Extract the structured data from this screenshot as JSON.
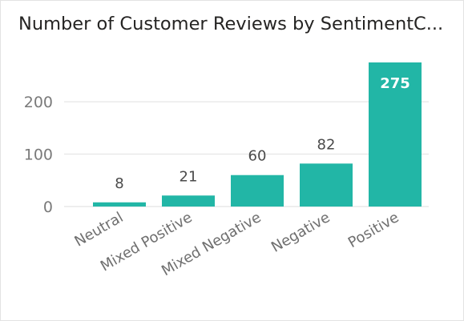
{
  "visual": {
    "title": "Number of Customer Reviews by SentimentC..."
  },
  "chart_data": {
    "type": "bar",
    "title": "Number of Customer Reviews by SentimentC...",
    "categories": [
      "Neutral",
      "Mixed Positive",
      "Mixed Negative",
      "Negative",
      "Positive"
    ],
    "values": [
      8,
      21,
      60,
      82,
      275
    ],
    "data_labels": [
      "8",
      "21",
      "60",
      "82",
      "275"
    ],
    "yticks": [
      0,
      100,
      200
    ],
    "ytick_labels": [
      "0",
      "100",
      "200"
    ],
    "ylim": [
      0,
      275
    ],
    "xlabel": "",
    "ylabel": "",
    "grid": true,
    "legend": "none",
    "bar_color": "#22b6a6",
    "grid_color": "#e9e9e9"
  }
}
